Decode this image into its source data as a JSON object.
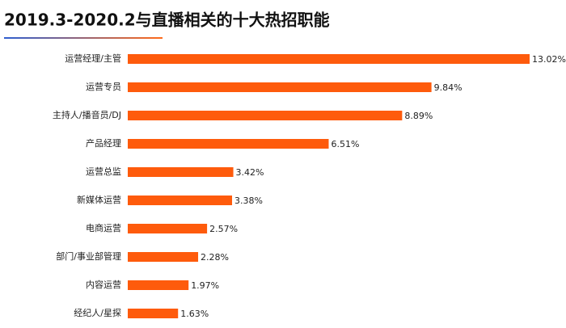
{
  "chart_data": {
    "type": "hbar",
    "title": "2019.3-2020.2与直播相关的十大热招职能",
    "categories": [
      "运营经理/主管",
      "运营专员",
      "主持人/播音员/DJ",
      "产品经理",
      "运营总监",
      "新媒体运营",
      "电商运营",
      "部门/事业部管理",
      "内容运营",
      "经纪人/星探"
    ],
    "values": [
      13.02,
      9.84,
      8.89,
      6.51,
      3.42,
      3.38,
      2.57,
      2.28,
      1.97,
      1.63
    ],
    "value_labels": [
      "13.02%",
      "9.84%",
      "8.89%",
      "6.51%",
      "3.42%",
      "3.38%",
      "2.57%",
      "2.28%",
      "1.97%",
      "1.63%"
    ],
    "color": "#fe5b0c"
  }
}
